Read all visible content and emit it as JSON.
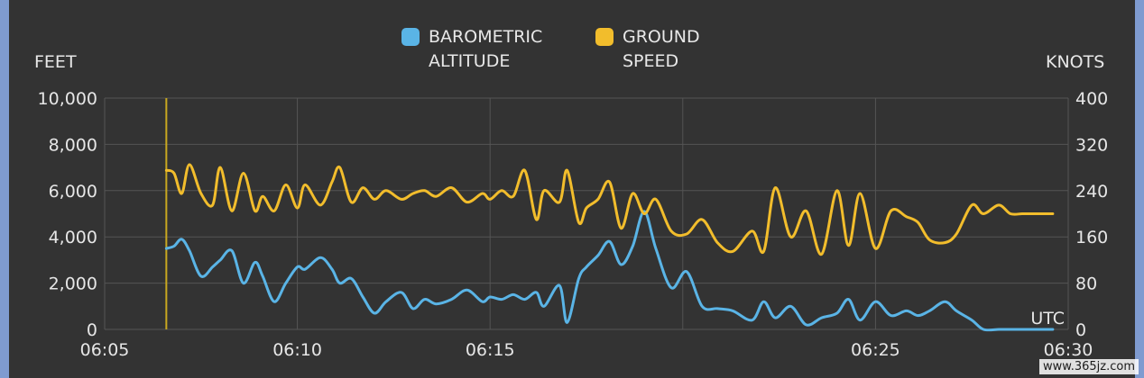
{
  "colors": {
    "altitude": "#5ab4e6",
    "speed": "#f2bd2c",
    "marker": "#c9a820",
    "grid": "#555555",
    "background": "#333333"
  },
  "chart_data": {
    "type": "line",
    "title": "",
    "legend": {
      "placement": "top-center",
      "entries": [
        "BAROMETRIC\nALTITUDE",
        "GROUND\nSPEED"
      ]
    },
    "xlabel": "UTC",
    "ylabel_left": "FEET",
    "ylabel_right": "KNOTS",
    "x_ticks": [
      "06:05",
      "06:10",
      "06:15",
      "06:25",
      "06:30"
    ],
    "x_range_minutes": [
      "06:05",
      "06:30"
    ],
    "y_left": {
      "range": [
        0,
        10000
      ],
      "ticks": [
        "10,000",
        "8,000",
        "6,000",
        "4,000",
        "2,000",
        "0"
      ]
    },
    "y_right": {
      "range": [
        0,
        400
      ],
      "ticks": [
        "400",
        "320",
        "240",
        "160",
        "80",
        "0"
      ]
    },
    "grid": true,
    "marker_line_x": "06:06.6",
    "series": [
      {
        "name": "BAROMETRIC\nALTITUDE",
        "axis": "left",
        "x": [
          "06:06.6",
          "06:06.8",
          "06:07.0",
          "06:07.2",
          "06:07.5",
          "06:07.8",
          "06:08.0",
          "06:08.3",
          "06:08.6",
          "06:08.9",
          "06:09.1",
          "06:09.4",
          "06:09.7",
          "06:10.0",
          "06:10.2",
          "06:10.6",
          "06:10.9",
          "06:11.1",
          "06:11.4",
          "06:11.7",
          "06:12.0",
          "06:12.3",
          "06:12.7",
          "06:13.0",
          "06:13.3",
          "06:13.6",
          "06:14.0",
          "06:14.4",
          "06:14.8",
          "06:15.0",
          "06:15.3",
          "06:15.6",
          "06:15.9",
          "06:16.2",
          "06:16.4",
          "06:16.8",
          "06:17.0",
          "06:17.3",
          "06:17.5",
          "06:17.8",
          "06:18.1",
          "06:18.4",
          "06:18.7",
          "06:19.0",
          "06:19.3",
          "06:19.7",
          "06:20.1",
          "06:20.5",
          "06:20.9",
          "06:21.3",
          "06:21.8",
          "06:22.1",
          "06:22.4",
          "06:22.8",
          "06:23.2",
          "06:23.6",
          "06:24.0",
          "06:24.3",
          "06:24.6",
          "06:25.0",
          "06:25.4",
          "06:25.8",
          "06:26.1",
          "06:26.4",
          "06:26.8",
          "06:27.1",
          "06:27.5",
          "06:27.8",
          "06:28.2",
          "06:28.5",
          "06:28.8",
          "06:29.0",
          "06:29.3",
          "06:29.4",
          "06:29.6"
        ],
        "values": [
          3500,
          3600,
          3900,
          3400,
          2300,
          2700,
          3000,
          3400,
          2000,
          2900,
          2300,
          1200,
          2000,
          2700,
          2600,
          3100,
          2600,
          2000,
          2200,
          1400,
          700,
          1200,
          1600,
          900,
          1300,
          1100,
          1300,
          1700,
          1200,
          1400,
          1300,
          1500,
          1300,
          1600,
          1000,
          1900,
          300,
          2200,
          2700,
          3200,
          3800,
          2800,
          3600,
          5100,
          3500,
          1800,
          2500,
          1000,
          900,
          800,
          400,
          1200,
          500,
          1000,
          200,
          500,
          700,
          1300,
          400,
          1200,
          600,
          800,
          600,
          800,
          1200,
          800,
          400,
          0,
          0,
          0,
          0,
          0,
          0,
          0,
          0
        ]
      },
      {
        "name": "GROUND\nSPEED",
        "axis": "right",
        "x": [
          "06:06.6",
          "06:06.8",
          "06:07.0",
          "06:07.2",
          "06:07.5",
          "06:07.8",
          "06:08.0",
          "06:08.3",
          "06:08.6",
          "06:08.9",
          "06:09.1",
          "06:09.4",
          "06:09.7",
          "06:10.0",
          "06:10.2",
          "06:10.6",
          "06:10.9",
          "06:11.1",
          "06:11.4",
          "06:11.7",
          "06:12.0",
          "06:12.3",
          "06:12.7",
          "06:13.0",
          "06:13.3",
          "06:13.6",
          "06:14.0",
          "06:14.4",
          "06:14.8",
          "06:15.0",
          "06:15.3",
          "06:15.6",
          "06:15.9",
          "06:16.2",
          "06:16.4",
          "06:16.8",
          "06:17.0",
          "06:17.3",
          "06:17.5",
          "06:17.8",
          "06:18.1",
          "06:18.4",
          "06:18.7",
          "06:19.0",
          "06:19.3",
          "06:19.7",
          "06:20.1",
          "06:20.5",
          "06:20.9",
          "06:21.3",
          "06:21.8",
          "06:22.1",
          "06:22.4",
          "06:22.8",
          "06:23.2",
          "06:23.6",
          "06:24.0",
          "06:24.3",
          "06:24.6",
          "06:25.0",
          "06:25.4",
          "06:25.8",
          "06:26.1",
          "06:26.4",
          "06:26.8",
          "06:27.1",
          "06:27.5",
          "06:27.8",
          "06:28.2",
          "06:28.5",
          "06:28.8",
          "06:29.0",
          "06:29.3",
          "06:29.4",
          "06:29.6"
        ],
        "values": [
          275,
          270,
          235,
          285,
          235,
          215,
          280,
          205,
          270,
          205,
          230,
          205,
          250,
          210,
          250,
          215,
          255,
          280,
          220,
          245,
          225,
          240,
          225,
          235,
          240,
          230,
          245,
          220,
          235,
          225,
          240,
          230,
          275,
          190,
          240,
          220,
          275,
          185,
          210,
          225,
          255,
          175,
          235,
          200,
          225,
          170,
          165,
          190,
          150,
          135,
          170,
          135,
          245,
          160,
          205,
          130,
          240,
          145,
          235,
          140,
          205,
          195,
          185,
          155,
          150,
          165,
          215,
          200,
          215,
          200,
          200,
          200,
          200,
          200,
          200
        ]
      }
    ]
  },
  "watermark": "www.365jz.com"
}
